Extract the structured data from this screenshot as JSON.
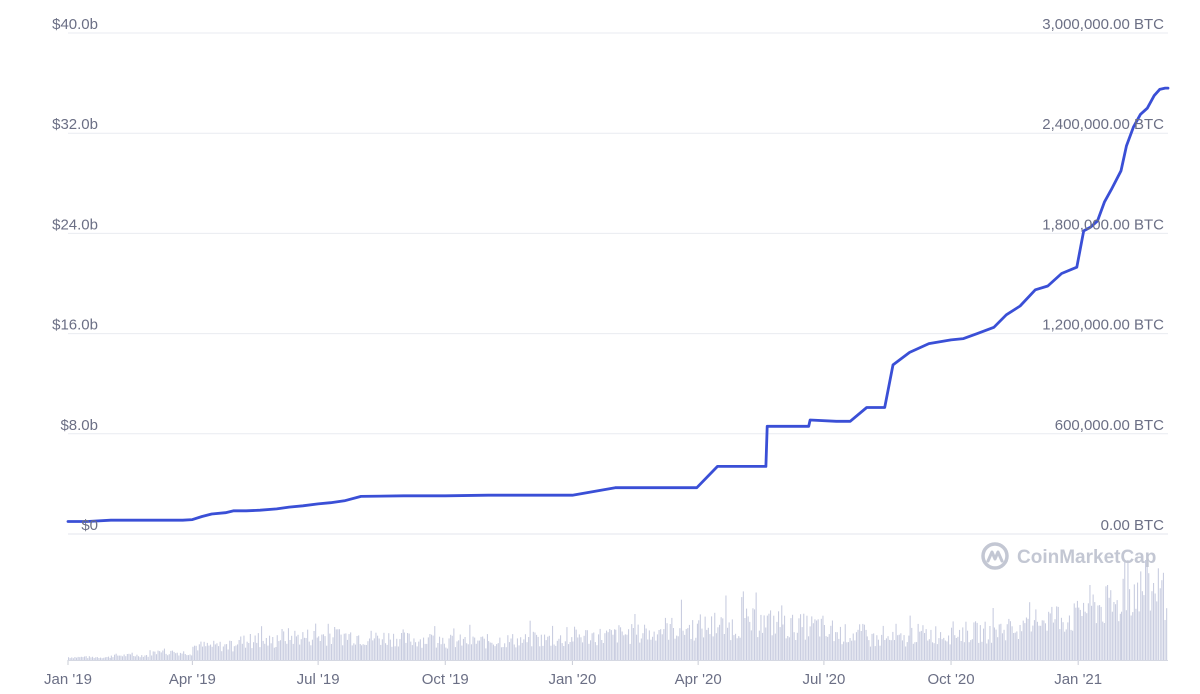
{
  "watermark": {
    "text": "CoinMarketCap",
    "icon": "coinmarketcap-logo-icon"
  },
  "colors": {
    "line": "#3a4fd6",
    "volume": "#c9cde0",
    "grid": "#e9ebf1",
    "label": "#6b6f85",
    "watermark": "#c3c7d3"
  },
  "chart_data": {
    "type": "line",
    "title": "",
    "xlabel": "",
    "ylabel": "",
    "grid": true,
    "legend": "none",
    "y_left": {
      "range": [
        0,
        40
      ],
      "ticks": [
        0,
        8,
        16,
        24,
        32,
        40
      ],
      "tick_labels": [
        "$0",
        "$8.0b",
        "$16.0b",
        "$24.0b",
        "$32.0b",
        "$40.0b"
      ]
    },
    "y_right": {
      "range": [
        0,
        3000000
      ],
      "ticks": [
        0,
        600000,
        1200000,
        1800000,
        2400000,
        3000000
      ],
      "tick_labels": [
        "0.00 BTC",
        "600,000.00 BTC",
        "1,200,000.00 BTC",
        "1,800,000.00 BTC",
        "2,400,000.00 BTC",
        "3,000,000.00 BTC"
      ]
    },
    "x_axis": {
      "range": [
        "2019-01-01",
        "2021-03-07"
      ],
      "ticks": [
        "2019-01-01",
        "2019-04-01",
        "2019-07-01",
        "2019-10-01",
        "2020-01-01",
        "2020-04-01",
        "2020-07-01",
        "2020-10-01",
        "2021-01-01"
      ],
      "tick_labels": [
        "Jan '19",
        "Apr '19",
        "Jul '19",
        "Oct '19",
        "Jan '20",
        "Apr '20",
        "Jul '20",
        "Oct '20",
        "Jan '21"
      ]
    },
    "series": [
      {
        "axis": "left",
        "x": [
          "2019-01-01",
          "2019-01-15",
          "2019-02-01",
          "2019-03-01",
          "2019-03-25",
          "2019-04-01",
          "2019-04-08",
          "2019-04-15",
          "2019-04-25",
          "2019-05-01",
          "2019-05-10",
          "2019-05-20",
          "2019-06-01",
          "2019-06-10",
          "2019-06-20",
          "2019-07-01",
          "2019-07-10",
          "2019-07-20",
          "2019-08-01",
          "2019-09-01",
          "2019-10-01",
          "2019-11-01",
          "2019-12-01",
          "2019-12-31",
          "2020-01-01",
          "2020-02-01",
          "2020-03-01",
          "2020-03-30",
          "2020-03-31",
          "2020-04-15",
          "2020-04-28",
          "2020-04-29",
          "2020-05-15",
          "2020-05-20",
          "2020-05-21",
          "2020-06-10",
          "2020-06-20",
          "2020-06-21",
          "2020-07-10",
          "2020-07-20",
          "2020-08-01",
          "2020-08-13",
          "2020-08-14",
          "2020-08-20",
          "2020-09-01",
          "2020-09-15",
          "2020-10-01",
          "2020-10-10",
          "2020-10-20",
          "2020-11-01",
          "2020-11-10",
          "2020-11-20",
          "2020-12-01",
          "2020-12-10",
          "2020-12-20",
          "2020-12-31",
          "2021-01-05",
          "2021-01-10",
          "2021-01-15",
          "2021-01-20",
          "2021-01-25",
          "2021-02-01",
          "2021-02-05",
          "2021-02-10",
          "2021-02-15",
          "2021-02-20",
          "2021-02-25",
          "2021-03-01",
          "2021-03-05",
          "2021-03-07"
        ],
        "values": [
          1.0,
          1.0,
          1.1,
          1.1,
          1.1,
          1.15,
          1.4,
          1.6,
          1.7,
          1.85,
          1.85,
          1.9,
          2.0,
          2.15,
          2.25,
          2.4,
          2.5,
          2.65,
          3.0,
          3.05,
          3.05,
          3.1,
          3.1,
          3.1,
          3.1,
          3.7,
          3.7,
          3.7,
          3.7,
          5.4,
          5.4,
          5.4,
          5.4,
          5.4,
          8.6,
          8.6,
          8.6,
          9.1,
          9.0,
          9.0,
          10.1,
          10.1,
          10.1,
          13.5,
          14.5,
          15.2,
          15.5,
          15.6,
          16.0,
          16.5,
          17.5,
          18.2,
          19.5,
          19.8,
          20.8,
          21.3,
          24.2,
          24.5,
          25.0,
          26.5,
          27.5,
          29.0,
          31.0,
          32.5,
          33.5,
          34.0,
          35.0,
          35.5,
          35.6,
          35.6
        ]
      },
      {
        "name": "Volume",
        "type": "bar",
        "relative": true,
        "x": [
          "2019-01",
          "2019-02",
          "2019-03",
          "2019-04",
          "2019-05",
          "2019-06",
          "2019-07",
          "2019-08",
          "2019-09",
          "2019-10",
          "2019-11",
          "2019-12",
          "2020-01",
          "2020-02",
          "2020-03",
          "2020-04",
          "2020-05",
          "2020-06",
          "2020-07",
          "2020-08",
          "2020-09",
          "2020-10",
          "2020-11",
          "2020-12",
          "2021-01",
          "2021-02",
          "2021-03"
        ],
        "values": [
          0.03,
          0.05,
          0.08,
          0.15,
          0.2,
          0.25,
          0.26,
          0.24,
          0.22,
          0.2,
          0.21,
          0.22,
          0.26,
          0.28,
          0.34,
          0.36,
          0.4,
          0.36,
          0.28,
          0.22,
          0.28,
          0.3,
          0.33,
          0.46,
          0.58,
          0.75,
          0.7
        ]
      }
    ]
  }
}
